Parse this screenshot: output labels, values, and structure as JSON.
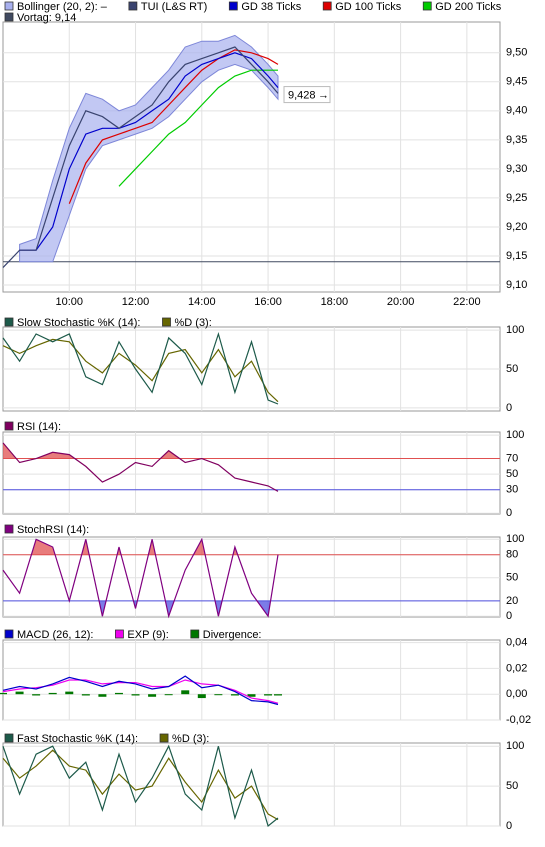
{
  "chart_data": [
    {
      "type": "line",
      "xlim": [
        8,
        23
      ],
      "ylim": [
        9.088,
        9.553
      ],
      "xticks": [
        {
          "value": 10,
          "label": "10:00"
        },
        {
          "value": 12,
          "label": "12:00"
        },
        {
          "value": 14,
          "label": "14:00"
        },
        {
          "value": 16,
          "label": "16:00"
        },
        {
          "value": 18,
          "label": "18:00"
        },
        {
          "value": 20,
          "label": "20:00"
        },
        {
          "value": 22,
          "label": "22:00"
        }
      ],
      "yticks": [
        {
          "value": 9.1,
          "label": "9,10"
        },
        {
          "value": 9.15,
          "label": "9,15"
        },
        {
          "value": 9.2,
          "label": "9,20"
        },
        {
          "value": 9.25,
          "label": "9,25"
        },
        {
          "value": 9.3,
          "label": "9,30"
        },
        {
          "value": 9.35,
          "label": "9,35"
        },
        {
          "value": 9.4,
          "label": "9,40"
        },
        {
          "value": 9.45,
          "label": "9,45"
        },
        {
          "value": 9.5,
          "label": "9,50"
        }
      ],
      "grid": true,
      "x": [
        8.0,
        8.5,
        9.0,
        9.5,
        10.0,
        10.5,
        11.0,
        11.5,
        12.0,
        12.5,
        13.0,
        13.5,
        14.0,
        14.5,
        15.0,
        15.5,
        16.0,
        16.3
      ],
      "series": [
        {
          "name": "Bollinger (20, 2): –",
          "type": "band",
          "color": "#a8b0ee",
          "upper": [
            null,
            9.17,
            9.18,
            9.28,
            9.37,
            9.43,
            9.42,
            9.4,
            9.41,
            9.44,
            9.47,
            9.51,
            9.52,
            9.52,
            9.53,
            9.51,
            9.48,
            9.46
          ],
          "lower": [
            null,
            9.14,
            9.14,
            9.14,
            9.22,
            9.3,
            9.34,
            9.35,
            9.36,
            9.37,
            9.39,
            9.42,
            9.45,
            9.47,
            9.48,
            9.47,
            9.44,
            9.42
          ]
        },
        {
          "name": "TUI (L&S RT)",
          "color": "#3a4470",
          "values": [
            9.13,
            9.16,
            9.16,
            9.25,
            9.34,
            9.4,
            9.39,
            9.37,
            9.39,
            9.41,
            9.45,
            9.48,
            9.49,
            9.5,
            9.51,
            9.48,
            9.45,
            9.43
          ]
        },
        {
          "name": "GD 38 Ticks",
          "color": "#0000cc",
          "values": [
            null,
            9.16,
            9.16,
            9.2,
            9.3,
            9.36,
            9.37,
            9.37,
            9.38,
            9.4,
            9.42,
            9.46,
            9.48,
            9.49,
            9.5,
            9.49,
            9.46,
            9.44
          ]
        },
        {
          "name": "GD 100 Ticks",
          "color": "#dd0000",
          "values": [
            null,
            null,
            null,
            null,
            9.24,
            9.31,
            9.35,
            9.36,
            9.37,
            9.38,
            9.41,
            9.44,
            9.47,
            9.49,
            9.505,
            9.5,
            9.49,
            9.48
          ]
        },
        {
          "name": "GD 200 Ticks",
          "color": "#00cc00",
          "values": [
            null,
            null,
            null,
            null,
            null,
            null,
            null,
            9.27,
            9.3,
            9.33,
            9.36,
            9.38,
            9.41,
            9.44,
            9.46,
            9.47,
            9.47,
            9.47
          ]
        }
      ],
      "reference_line": {
        "name": "Vortag: 9,14",
        "value": 9.14,
        "color": "#404a60"
      },
      "last_label": {
        "value": 9.428,
        "label": "9,428"
      }
    },
    {
      "type": "line",
      "xlim": [
        8,
        23
      ],
      "ylim": [
        -4,
        104
      ],
      "yticks": [
        0,
        50,
        100
      ],
      "grid": true,
      "x": [
        8.0,
        8.5,
        9.0,
        9.5,
        10.0,
        10.5,
        11.0,
        11.5,
        12.0,
        12.5,
        13.0,
        13.5,
        14.0,
        14.5,
        15.0,
        15.5,
        16.0,
        16.3
      ],
      "series": [
        {
          "name": "Slow Stochastic %K (14):",
          "color": "#1d5a4a",
          "values": [
            90,
            60,
            95,
            85,
            95,
            40,
            30,
            85,
            50,
            20,
            90,
            70,
            30,
            95,
            20,
            85,
            10,
            5
          ]
        },
        {
          "name": "%D (3):",
          "color": "#666600",
          "values": [
            80,
            70,
            80,
            88,
            85,
            60,
            45,
            70,
            55,
            35,
            70,
            75,
            45,
            75,
            40,
            60,
            20,
            8
          ]
        }
      ]
    },
    {
      "type": "line",
      "xlim": [
        8,
        23
      ],
      "ylim": [
        -1,
        104
      ],
      "yticks": [
        0,
        30,
        50,
        70,
        100
      ],
      "grid": true,
      "bands": [
        {
          "value": 70,
          "color": "#e05050",
          "fill": "above"
        },
        {
          "value": 30,
          "color": "#5050e0",
          "fill": "below"
        }
      ],
      "x": [
        8.0,
        8.5,
        9.0,
        9.5,
        10.0,
        10.5,
        11.0,
        11.5,
        12.0,
        12.5,
        13.0,
        13.5,
        14.0,
        14.5,
        15.0,
        15.5,
        16.0,
        16.3
      ],
      "series": [
        {
          "name": "RSI (14):",
          "color": "#800060",
          "values": [
            90,
            65,
            70,
            78,
            75,
            60,
            40,
            50,
            65,
            60,
            80,
            65,
            70,
            62,
            45,
            40,
            35,
            28
          ]
        }
      ]
    },
    {
      "type": "line",
      "xlim": [
        8,
        23
      ],
      "ylim": [
        -1,
        103
      ],
      "yticks": [
        0,
        20,
        50,
        80,
        100
      ],
      "grid": true,
      "bands": [
        {
          "value": 80,
          "color": "#e05050",
          "fill": "above"
        },
        {
          "value": 20,
          "color": "#5050e0",
          "fill": "below"
        }
      ],
      "x": [
        8.0,
        8.5,
        9.0,
        9.5,
        10.0,
        10.5,
        11.0,
        11.5,
        12.0,
        12.5,
        13.0,
        13.5,
        14.0,
        14.5,
        15.0,
        15.5,
        16.0,
        16.3
      ],
      "series": [
        {
          "name": "StochRSI (14):",
          "color": "#800080",
          "values": [
            60,
            30,
            100,
            90,
            20,
            100,
            0,
            90,
            10,
            100,
            0,
            60,
            100,
            0,
            90,
            30,
            0,
            80
          ]
        }
      ]
    },
    {
      "type": "line",
      "xlim": [
        8,
        23
      ],
      "ylim": [
        -0.02,
        0.042
      ],
      "yticks": [
        {
          "value": -0.02,
          "label": "-0,02"
        },
        {
          "value": 0,
          "label": "0,00"
        },
        {
          "value": 0.02,
          "label": "0,02"
        },
        {
          "value": 0.04,
          "label": "0,04"
        }
      ],
      "grid": true,
      "x": [
        8.0,
        8.5,
        9.0,
        9.5,
        10.0,
        10.5,
        11.0,
        11.5,
        12.0,
        12.5,
        13.0,
        13.5,
        14.0,
        14.5,
        15.0,
        15.5,
        16.0,
        16.3
      ],
      "series": [
        {
          "name": "MACD (26, 12):",
          "color": "#0000cc",
          "values": [
            0.003,
            0.006,
            0.004,
            0.008,
            0.013,
            0.01,
            0.006,
            0.01,
            0.008,
            0.004,
            0.006,
            0.014,
            0.005,
            0.007,
            0.002,
            -0.005,
            -0.006,
            -0.008
          ]
        },
        {
          "name": "EXP (9):",
          "color": "#ee00ee",
          "values": [
            0.002,
            0.004,
            0.005,
            0.007,
            0.011,
            0.011,
            0.008,
            0.009,
            0.009,
            0.006,
            0.006,
            0.011,
            0.008,
            0.007,
            0.003,
            -0.003,
            -0.005,
            -0.007
          ]
        },
        {
          "name": "Divergence:",
          "type": "bar",
          "color": "#007700",
          "values": [
            0.001,
            0.002,
            -0.001,
            0.001,
            0.002,
            -0.001,
            -0.002,
            0.001,
            -0.001,
            -0.002,
            0,
            0.003,
            -0.003,
            0,
            -0.001,
            -0.002,
            -0.001,
            -0.001
          ]
        }
      ]
    },
    {
      "type": "line",
      "xlim": [
        8,
        23
      ],
      "ylim": [
        0,
        104
      ],
      "yticks": [
        0,
        50,
        100
      ],
      "grid": true,
      "x": [
        8.0,
        8.5,
        9.0,
        9.5,
        10.0,
        10.5,
        11.0,
        11.5,
        12.0,
        12.5,
        13.0,
        13.5,
        14.0,
        14.5,
        15.0,
        15.5,
        16.0,
        16.3
      ],
      "series": [
        {
          "name": "Fast Stochastic %K (14):",
          "color": "#1d5a4a",
          "values": [
            100,
            40,
            90,
            100,
            60,
            80,
            20,
            90,
            30,
            60,
            100,
            40,
            20,
            100,
            10,
            70,
            0,
            10
          ]
        },
        {
          "name": "%D (3):",
          "color": "#666600",
          "values": [
            85,
            60,
            75,
            95,
            75,
            70,
            40,
            65,
            45,
            50,
            85,
            55,
            30,
            70,
            35,
            50,
            15,
            8
          ]
        }
      ]
    }
  ]
}
